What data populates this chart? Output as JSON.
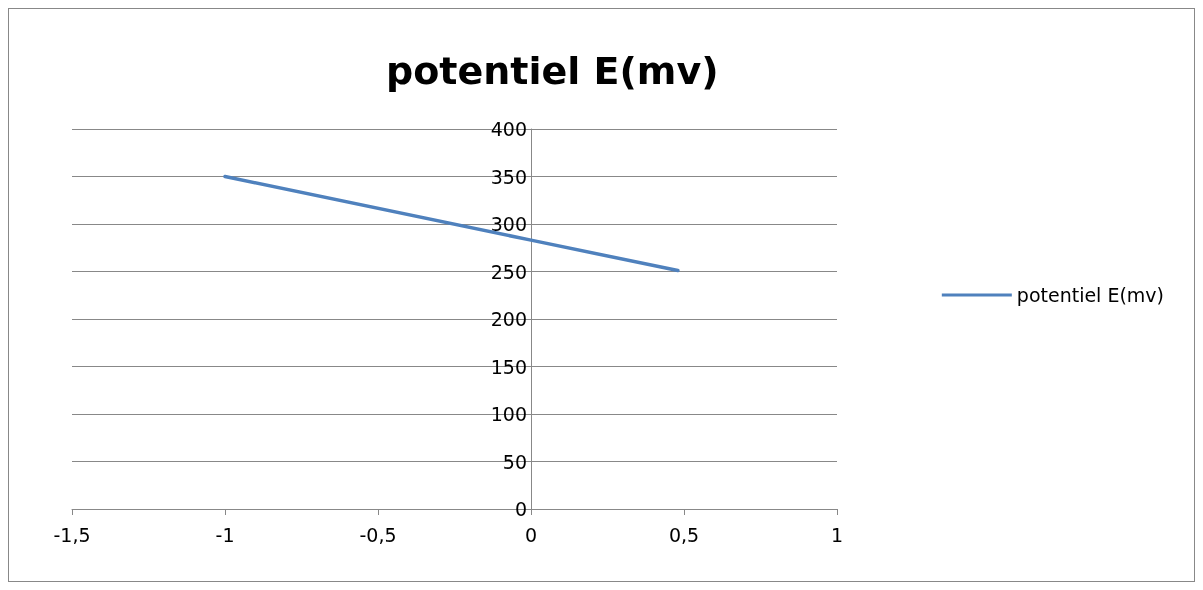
{
  "chart_data": {
    "type": "line",
    "title": "potentiel E(mv)",
    "x": [
      -1,
      0,
      0.48
    ],
    "series": [
      {
        "name": "potentiel E(mv)",
        "color": "#4f81bd",
        "values": [
          350,
          283,
          251
        ]
      }
    ],
    "xlim": [
      -1.5,
      1
    ],
    "xticks": [
      {
        "value": -1.5,
        "label": "-1,5"
      },
      -1,
      {
        "value": -0.5,
        "label": "-0,5"
      },
      0,
      {
        "value": 0.5,
        "label": "0,5"
      },
      1
    ],
    "ylim": [
      0,
      400
    ],
    "yticks": [
      0,
      50,
      100,
      150,
      200,
      250,
      300,
      350,
      400
    ],
    "grid": "y",
    "legend": "right",
    "marker": "none",
    "line_style": "solid"
  }
}
